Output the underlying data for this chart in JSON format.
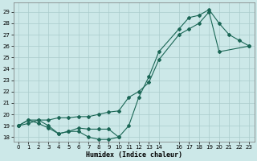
{
  "xlabel": "Humidex (Indice chaleur)",
  "bg_color": "#cce8e8",
  "grid_color": "#aacccc",
  "line_color": "#1a6655",
  "xlim": [
    -0.5,
    23.5
  ],
  "ylim": [
    17.6,
    29.8
  ],
  "xticks": [
    0,
    1,
    2,
    3,
    4,
    5,
    6,
    7,
    8,
    9,
    10,
    11,
    12,
    13,
    14,
    16,
    17,
    18,
    19,
    20,
    21,
    22,
    23
  ],
  "yticks": [
    18,
    19,
    20,
    21,
    22,
    23,
    24,
    25,
    26,
    27,
    28,
    29
  ],
  "line1_x": [
    0,
    1,
    2,
    3,
    4,
    5,
    6,
    7,
    8,
    9,
    10,
    11,
    12,
    13,
    14,
    16,
    17,
    18,
    19,
    20,
    21,
    22,
    23
  ],
  "line1_y": [
    19.0,
    19.5,
    19.5,
    19.0,
    18.3,
    18.5,
    18.5,
    18.0,
    17.8,
    17.8,
    18.0,
    19.0,
    21.5,
    23.3,
    25.5,
    27.5,
    28.5,
    28.7,
    29.2,
    28.0,
    27.0,
    26.5,
    26.0
  ],
  "line2_x": [
    0,
    1,
    2,
    3,
    4,
    5,
    6,
    7,
    8,
    9,
    10
  ],
  "line2_y": [
    19.0,
    19.5,
    19.2,
    18.8,
    18.3,
    18.5,
    18.8,
    18.7,
    18.7,
    18.7,
    18.0
  ],
  "line3_x": [
    0,
    1,
    2,
    3,
    4,
    5,
    6,
    7,
    8,
    9,
    10,
    11,
    12,
    13,
    14,
    16,
    17,
    18,
    19,
    20,
    23
  ],
  "line3_y": [
    19.0,
    19.2,
    19.5,
    19.5,
    19.7,
    19.7,
    19.8,
    19.8,
    20.0,
    20.2,
    20.3,
    21.5,
    22.0,
    22.8,
    24.8,
    27.0,
    27.5,
    28.0,
    29.0,
    25.5,
    26.0
  ],
  "xlabel_fontsize": 6.0,
  "tick_fontsize": 5.0
}
